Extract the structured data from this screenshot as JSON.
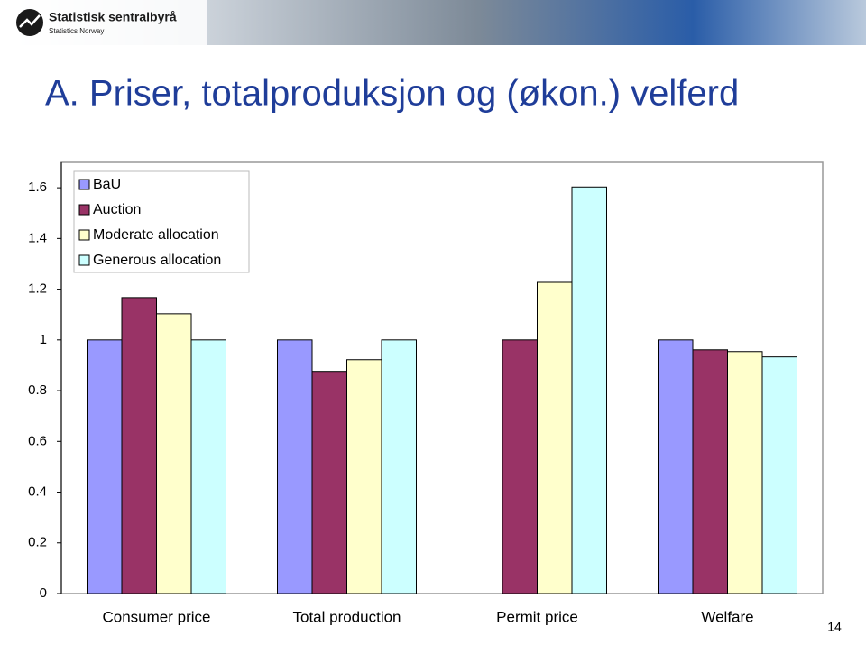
{
  "header": {
    "logo_name": "Statistisk sentralbyrå",
    "logo_sub": "Statistics Norway"
  },
  "page_number": 14,
  "chart_data": {
    "type": "bar",
    "title": "A. Priser, totalproduksjon og (økon.) velferd",
    "categories": [
      "Consumer price",
      "Total production",
      "Permit price",
      "Welfare"
    ],
    "series": [
      {
        "name": "BaU",
        "color": "#9999ff",
        "values": [
          1.0,
          1.0,
          null,
          1.0
        ]
      },
      {
        "name": "Auction",
        "color": "#993366",
        "values": [
          1.167,
          0.876,
          1.0,
          0.961
        ]
      },
      {
        "name": "Moderate allocation",
        "color": "#ffffcc",
        "values": [
          1.103,
          0.922,
          1.227,
          0.954
        ]
      },
      {
        "name": "Generous allocation",
        "color": "#ccffff",
        "values": [
          1.0,
          1.0,
          1.603,
          0.933
        ]
      }
    ],
    "ylim": [
      0,
      1.7
    ],
    "yticks": [
      0,
      0.2,
      0.4,
      0.6,
      0.8,
      1,
      1.2,
      1.4,
      1.6
    ],
    "legend": "top-left",
    "grid": false
  }
}
